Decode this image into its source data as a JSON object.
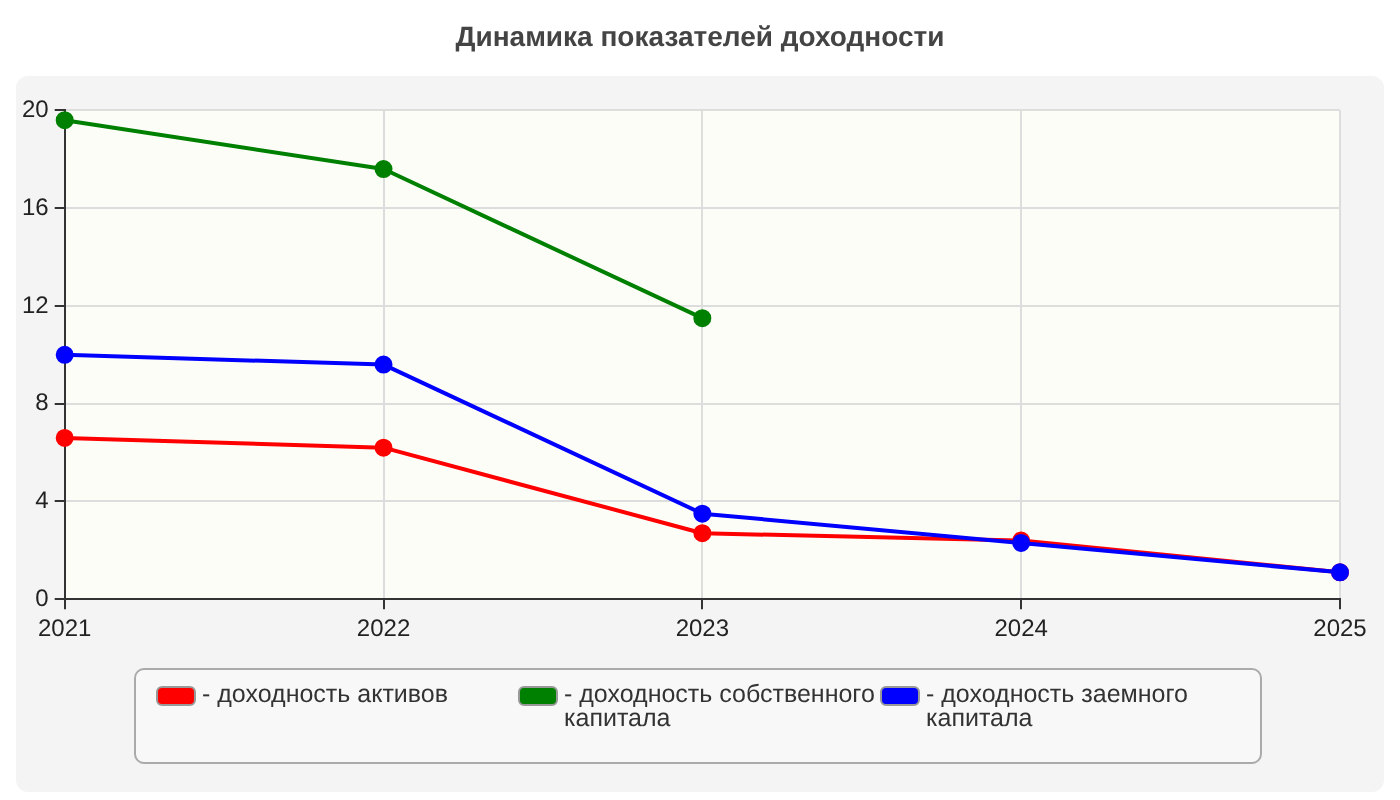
{
  "chart_data": {
    "type": "line",
    "title": "Динамика показателей доходности",
    "categories": [
      "2021",
      "2022",
      "2023",
      "2024",
      "2025"
    ],
    "series": [
      {
        "name": "- доходность активов",
        "color": "#ff0000",
        "values": [
          6.6,
          6.2,
          2.7,
          2.4,
          1.1
        ]
      },
      {
        "name": "- доходность собственного капитала",
        "color": "#008000",
        "values": [
          19.6,
          17.6,
          11.5,
          null,
          null
        ]
      },
      {
        "name": "- доходность заемного капитала",
        "color": "#0000ff",
        "values": [
          10.0,
          9.6,
          3.5,
          2.3,
          1.1
        ]
      }
    ],
    "ylim": [
      0,
      20
    ],
    "yticks": [
      0,
      4,
      8,
      12,
      16,
      20
    ],
    "grid": true,
    "legend": "bottom",
    "marker": "circle",
    "line_style": "solid"
  }
}
